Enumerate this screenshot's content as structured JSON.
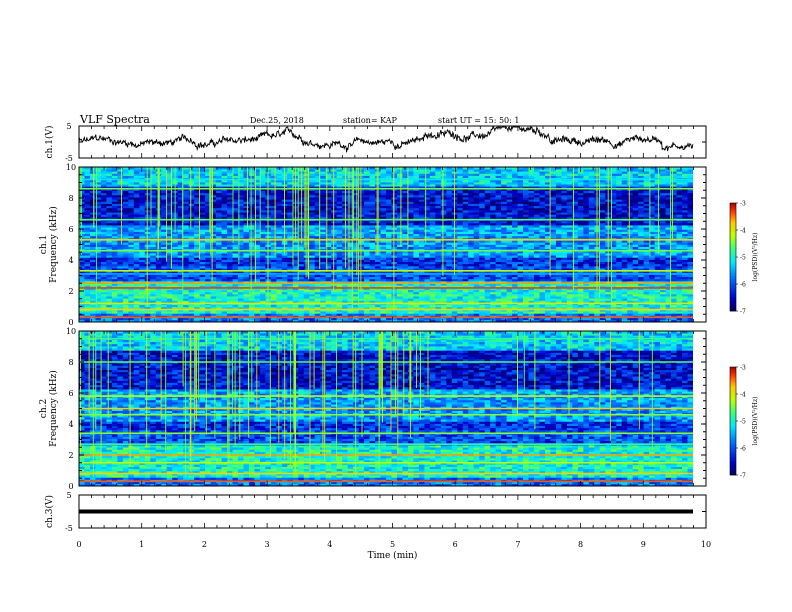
{
  "header": {
    "title": "VLF Spectra",
    "date": "Dec.25, 2018",
    "station": "station= KAP",
    "start": "start  UT =   15: 50: 1"
  },
  "chart_data": [
    {
      "type": "line",
      "name": "ch1-waveform",
      "ylabel": "ch.1(V)",
      "ylim": [
        -5,
        5
      ],
      "yticks": [
        "5",
        "-5"
      ],
      "xlim": [
        0,
        10
      ]
    },
    {
      "type": "heatmap",
      "name": "ch1-spectrogram",
      "ylabel": "ch.1\nFrequency (kHz)",
      "ylabel_line1": "ch.1",
      "ylabel_line2": "Frequency (kHz)",
      "ylim": [
        0,
        10
      ],
      "yticks": [
        "0",
        "2",
        "4",
        "6",
        "8",
        "10"
      ],
      "xlim": [
        0,
        9.85
      ],
      "colorbar": {
        "label": "log(PSD)(V²/Hz)",
        "ticks": [
          "-3",
          "-4",
          "-5",
          "-6",
          "-7"
        ],
        "range": [
          -7,
          -3
        ]
      },
      "bands_khz": [
        0.3,
        0.8,
        1.2,
        2.2,
        2.5,
        3.1,
        3.3,
        4.6,
        5.3,
        6.6,
        8.6,
        9.2
      ],
      "band_levels": [
        -3.4,
        -3.8,
        -4.0,
        -3.3,
        -3.6,
        -5.5,
        -4.2,
        -4.5,
        -3.8,
        -4.6,
        -4.5,
        -5.2
      ]
    },
    {
      "type": "heatmap",
      "name": "ch2-spectrogram",
      "ylabel": "ch.2\nFrequency (kHz)",
      "ylabel_line1": "ch.2",
      "ylabel_line2": "Frequency (kHz)",
      "ylim": [
        0,
        10
      ],
      "yticks": [
        "0",
        "2",
        "4",
        "6",
        "8",
        "10"
      ],
      "xlim": [
        0,
        9.85
      ],
      "colorbar": {
        "label": "log(PSD)(V²/Hz)",
        "ticks": [
          "-3",
          "-4",
          "-5",
          "-6",
          "-7"
        ],
        "range": [
          -7,
          -3
        ]
      },
      "bands_khz": [
        0.3,
        0.8,
        1.5,
        2.0,
        2.7,
        3.4,
        4.6,
        5.0,
        5.8,
        8.0,
        9.5
      ],
      "band_levels": [
        -3.4,
        -3.8,
        -4.2,
        -3.6,
        -4.8,
        -4.4,
        -4.4,
        -3.8,
        -4.2,
        -4.6,
        -4.8
      ]
    },
    {
      "type": "line",
      "name": "ch3-waveform",
      "ylabel": "ch.3(V)",
      "ylim": [
        -5,
        5
      ],
      "yticks": [
        "5",
        "-5"
      ],
      "xlim": [
        0,
        10
      ],
      "value": 0
    }
  ],
  "xaxis": {
    "label": "Time  (min)",
    "ticks": [
      "0",
      "1",
      "2",
      "3",
      "4",
      "5",
      "6",
      "7",
      "8",
      "9",
      "10"
    ]
  }
}
